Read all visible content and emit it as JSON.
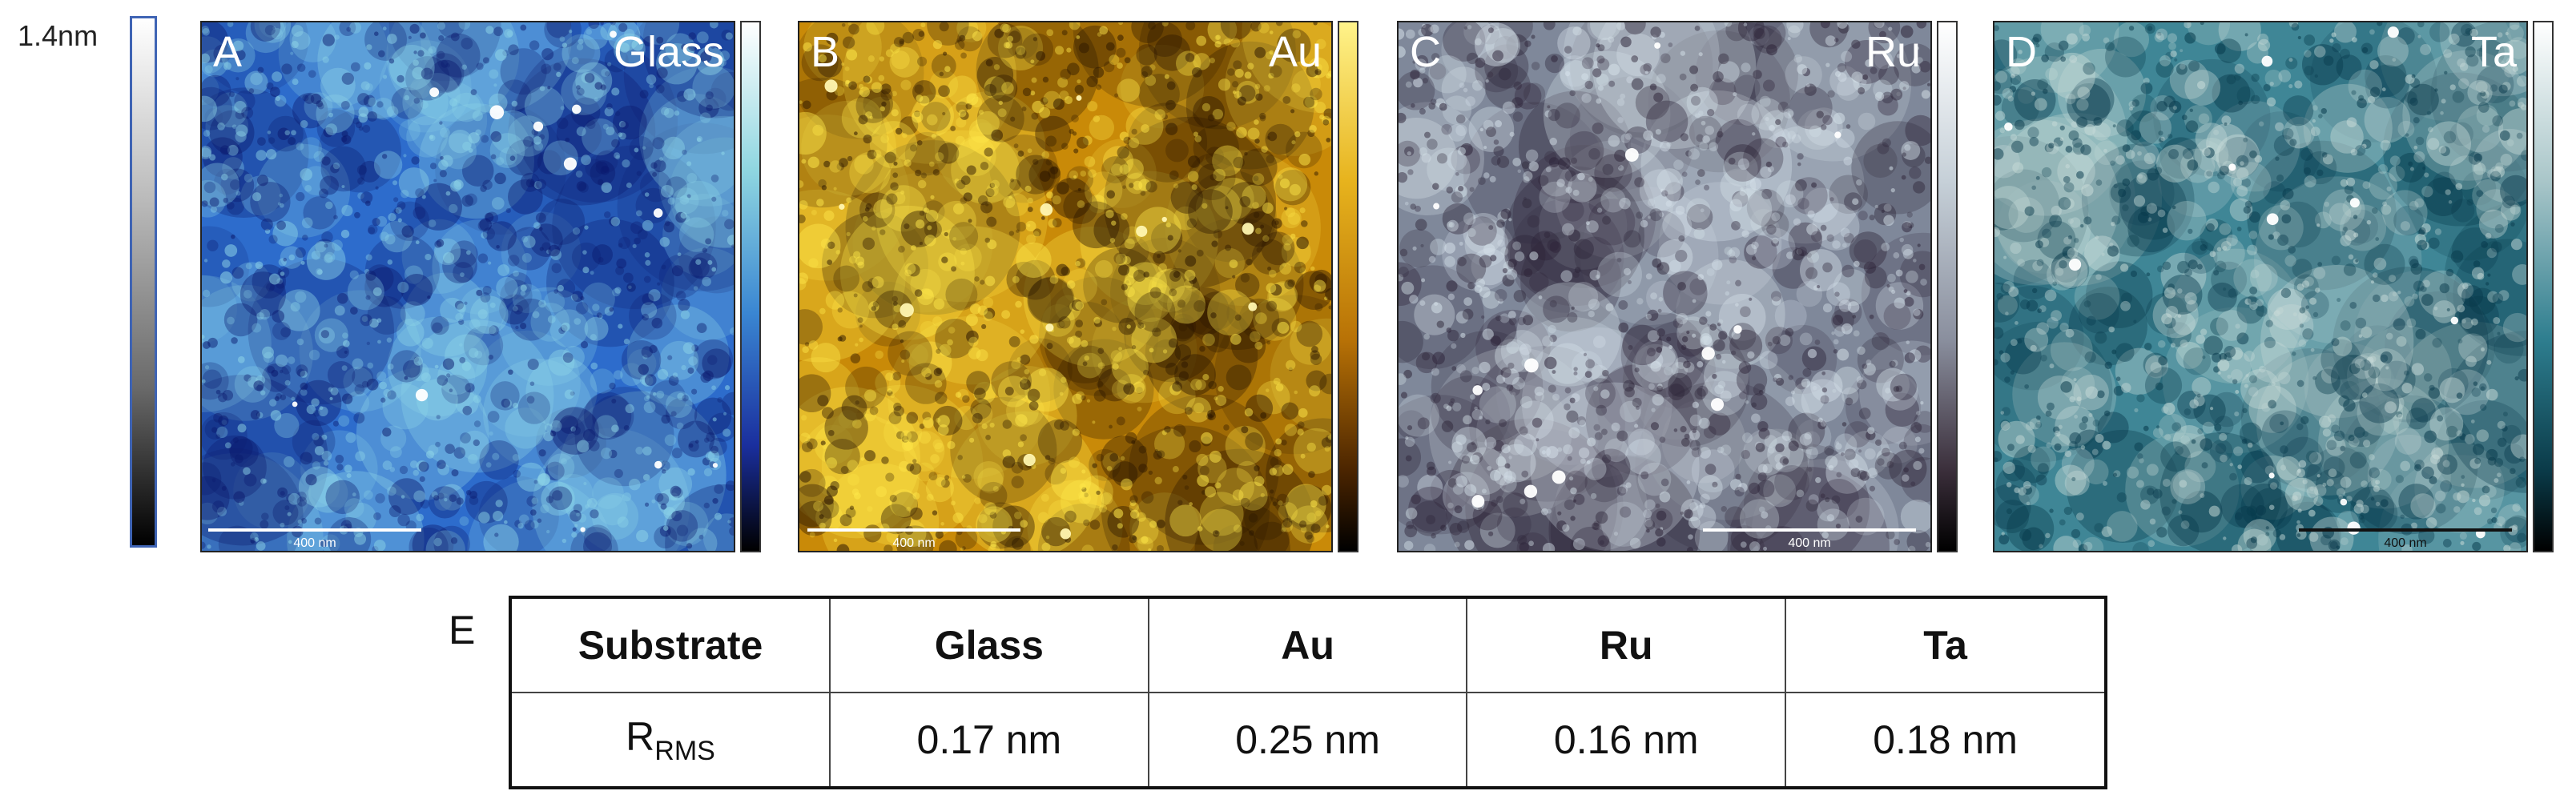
{
  "global_scale": {
    "label": "1.4nm"
  },
  "panels": [
    {
      "letter": "A",
      "name": "Glass",
      "scale_label": "400 nm",
      "colors": {
        "dark": "#0b1a6e",
        "mid": "#2d6ccc",
        "light": "#8fd6e8",
        "highlight": "#ffffff",
        "scalebar": "#ffffff"
      }
    },
    {
      "letter": "B",
      "name": "Au",
      "scale_label": "400 nm",
      "colors": {
        "dark": "#2a1500",
        "mid": "#c98a08",
        "light": "#ffe84a",
        "highlight": "#fff6b0",
        "scalebar": "#ffffff"
      }
    },
    {
      "letter": "C",
      "name": "Ru",
      "scale_label": "400 nm",
      "colors": {
        "dark": "#2d2438",
        "mid": "#7f889a",
        "light": "#d6e2ea",
        "highlight": "#ffffff",
        "scalebar": "#ffffff"
      }
    },
    {
      "letter": "D",
      "name": "Ta",
      "scale_label": "400 nm",
      "colors": {
        "dark": "#06384a",
        "mid": "#3f8696",
        "light": "#c9dcd9",
        "highlight": "#ffffff",
        "scalebar": "#111111"
      }
    }
  ],
  "table": {
    "label": "E",
    "header": [
      "Substrate",
      "Glass",
      "Au",
      "Ru",
      "Ta"
    ],
    "row_label_main": "R",
    "row_label_sub": "RMS",
    "values": [
      "0.17 nm",
      "0.25 nm",
      "0.16 nm",
      "0.18 nm"
    ]
  }
}
